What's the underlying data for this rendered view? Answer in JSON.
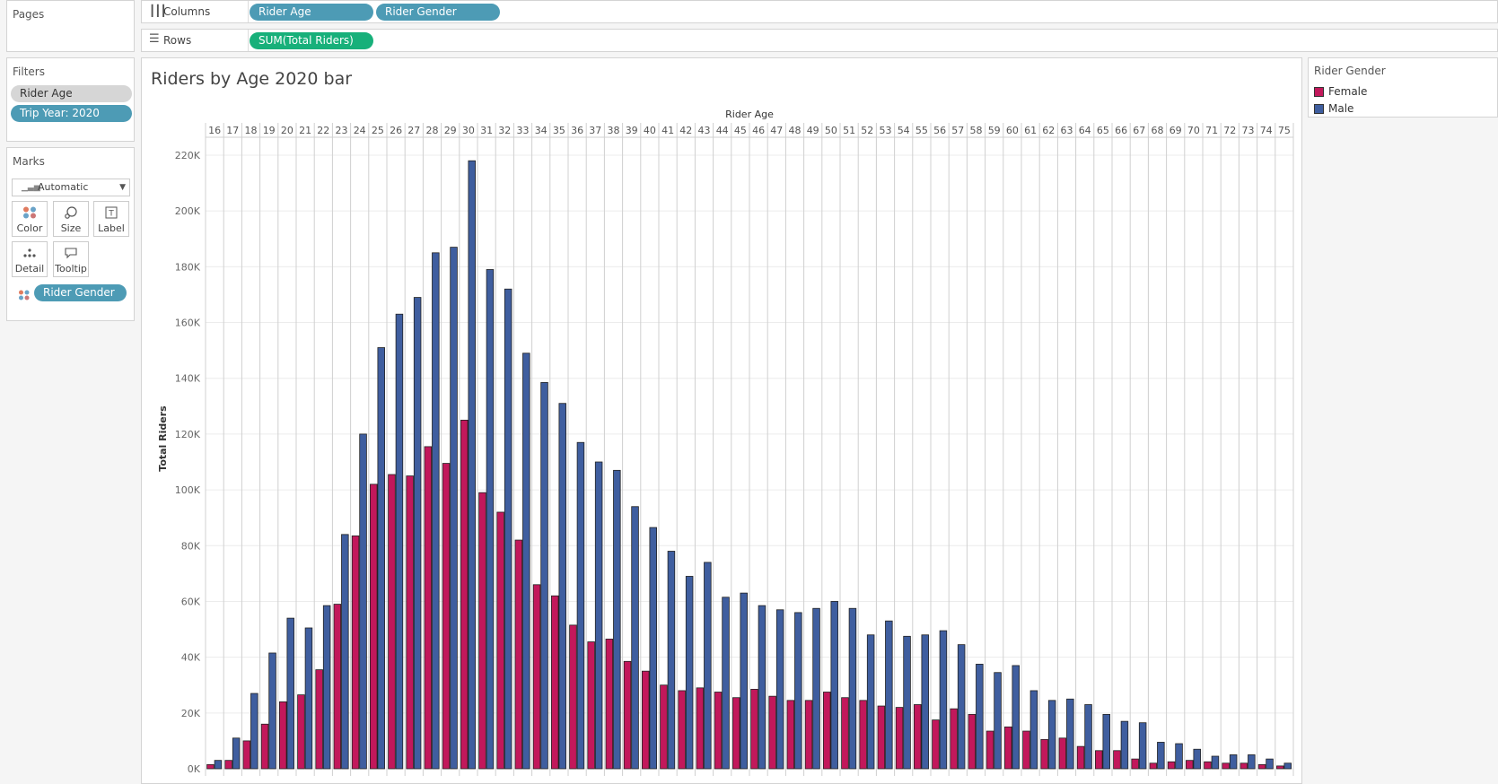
{
  "pages": {
    "title": "Pages"
  },
  "shelves": {
    "columns_label": "Columns",
    "rows_label": "Rows",
    "columns": [
      "Rider Age",
      "Rider Gender"
    ],
    "rows": [
      "SUM(Total Riders)"
    ]
  },
  "filters": {
    "title": "Filters",
    "items": [
      "Rider Age",
      "Trip Year: 2020"
    ]
  },
  "marks": {
    "title": "Marks",
    "type": "Automatic",
    "buttons": [
      "Color",
      "Size",
      "Label",
      "Detail",
      "Tooltip"
    ],
    "field": "Rider Gender"
  },
  "legend": {
    "title": "Rider Gender",
    "items": [
      {
        "label": "Female",
        "color": "#c2185b"
      },
      {
        "label": "Male",
        "color": "#3f5e9f"
      }
    ]
  },
  "chart_title": "Riders by Age 2020 bar",
  "chart_data": {
    "type": "bar",
    "title": "Riders by Age 2020 bar",
    "xlabel": "Rider Age",
    "ylabel": "Total Riders",
    "ylim": [
      0,
      220000
    ],
    "yticks": [
      "0K",
      "20K",
      "40K",
      "60K",
      "80K",
      "100K",
      "120K",
      "140K",
      "160K",
      "180K",
      "200K",
      "220K"
    ],
    "grid": true,
    "legend_position": "right",
    "categories": [
      16,
      17,
      18,
      19,
      20,
      21,
      22,
      23,
      24,
      25,
      26,
      27,
      28,
      29,
      30,
      31,
      32,
      33,
      34,
      35,
      36,
      37,
      38,
      39,
      40,
      41,
      42,
      43,
      44,
      45,
      46,
      47,
      48,
      49,
      50,
      51,
      52,
      53,
      54,
      55,
      56,
      57,
      58,
      59,
      60,
      61,
      62,
      63,
      64,
      65,
      66,
      67,
      68,
      69,
      70,
      71,
      72,
      73,
      74,
      75
    ],
    "series": [
      {
        "name": "Female",
        "color": "#c2185b",
        "values": [
          1500,
          3000,
          10000,
          16000,
          24000,
          26500,
          35500,
          59000,
          83500,
          102000,
          105500,
          105000,
          115500,
          109500,
          125000,
          99000,
          92000,
          82000,
          66000,
          62000,
          51500,
          45500,
          46500,
          38500,
          35000,
          30000,
          28000,
          29000,
          27500,
          25500,
          28500,
          26000,
          24500,
          24500,
          27500,
          25500,
          24500,
          22500,
          22000,
          23000,
          17500,
          21500,
          19500,
          13500,
          15000,
          13500,
          10500,
          11000,
          8000,
          6500,
          6500,
          3500,
          2000,
          2500,
          3000,
          2500,
          2000,
          2000,
          1500,
          1000
        ]
      },
      {
        "name": "Male",
        "color": "#3f5e9f",
        "values": [
          3000,
          11000,
          27000,
          41500,
          54000,
          50500,
          58500,
          84000,
          120000,
          151000,
          163000,
          169000,
          185000,
          187000,
          218000,
          179000,
          172000,
          149000,
          138500,
          131000,
          117000,
          110000,
          107000,
          94000,
          86500,
          78000,
          69000,
          74000,
          61500,
          63000,
          58500,
          57000,
          56000,
          57500,
          60000,
          57500,
          48000,
          53000,
          47500,
          48000,
          49500,
          44500,
          37500,
          34500,
          37000,
          28000,
          24500,
          25000,
          23000,
          19500,
          17000,
          16500,
          9500,
          9000,
          7000,
          4500,
          5000,
          5000,
          3500,
          2000
        ]
      }
    ]
  }
}
